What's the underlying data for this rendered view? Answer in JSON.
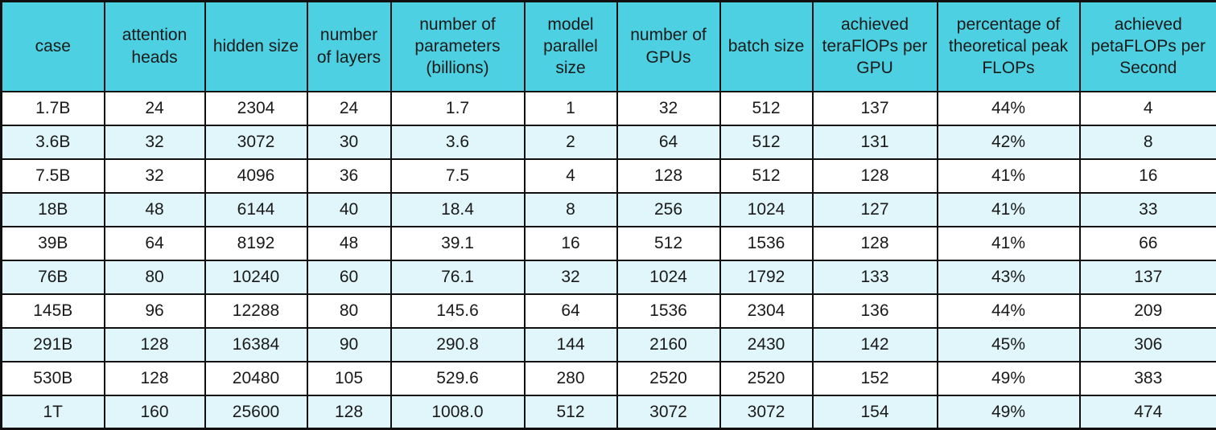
{
  "chart_data": {
    "type": "table",
    "columns": [
      "case",
      "attention heads",
      "hidden size",
      "number of layers",
      "number of parameters (billions)",
      "model parallel size",
      "number of GPUs",
      "batch size",
      "achieved teraFlOPs per GPU",
      "percentage of theoretical peak FLOPs",
      "achieved petaFLOPs per Second"
    ],
    "rows": [
      [
        "1.7B",
        "24",
        "2304",
        "24",
        "1.7",
        "1",
        "32",
        "512",
        "137",
        "44%",
        "4"
      ],
      [
        "3.6B",
        "32",
        "3072",
        "30",
        "3.6",
        "2",
        "64",
        "512",
        "131",
        "42%",
        "8"
      ],
      [
        "7.5B",
        "32",
        "4096",
        "36",
        "7.5",
        "4",
        "128",
        "512",
        "128",
        "41%",
        "16"
      ],
      [
        "18B",
        "48",
        "6144",
        "40",
        "18.4",
        "8",
        "256",
        "1024",
        "127",
        "41%",
        "33"
      ],
      [
        "39B",
        "64",
        "8192",
        "48",
        "39.1",
        "16",
        "512",
        "1536",
        "128",
        "41%",
        "66"
      ],
      [
        "76B",
        "80",
        "10240",
        "60",
        "76.1",
        "32",
        "1024",
        "1792",
        "133",
        "43%",
        "137"
      ],
      [
        "145B",
        "96",
        "12288",
        "80",
        "145.6",
        "64",
        "1536",
        "2304",
        "136",
        "44%",
        "209"
      ],
      [
        "291B",
        "128",
        "16384",
        "90",
        "290.8",
        "144",
        "2160",
        "2430",
        "142",
        "45%",
        "306"
      ],
      [
        "530B",
        "128",
        "20480",
        "105",
        "529.6",
        "280",
        "2520",
        "2520",
        "152",
        "49%",
        "383"
      ],
      [
        "1T",
        "160",
        "25600",
        "128",
        "1008.0",
        "512",
        "3072",
        "3072",
        "154",
        "49%",
        "474"
      ]
    ],
    "layout": {
      "header_position": "top",
      "striped": true,
      "stripe_start_row_index": 1
    }
  },
  "colors": {
    "header_bg": "#4dd0e1",
    "row_bg": "#ffffff",
    "row_alt_bg": "#e0f6fa",
    "border": "#101010",
    "text": "#1a1a1a"
  }
}
